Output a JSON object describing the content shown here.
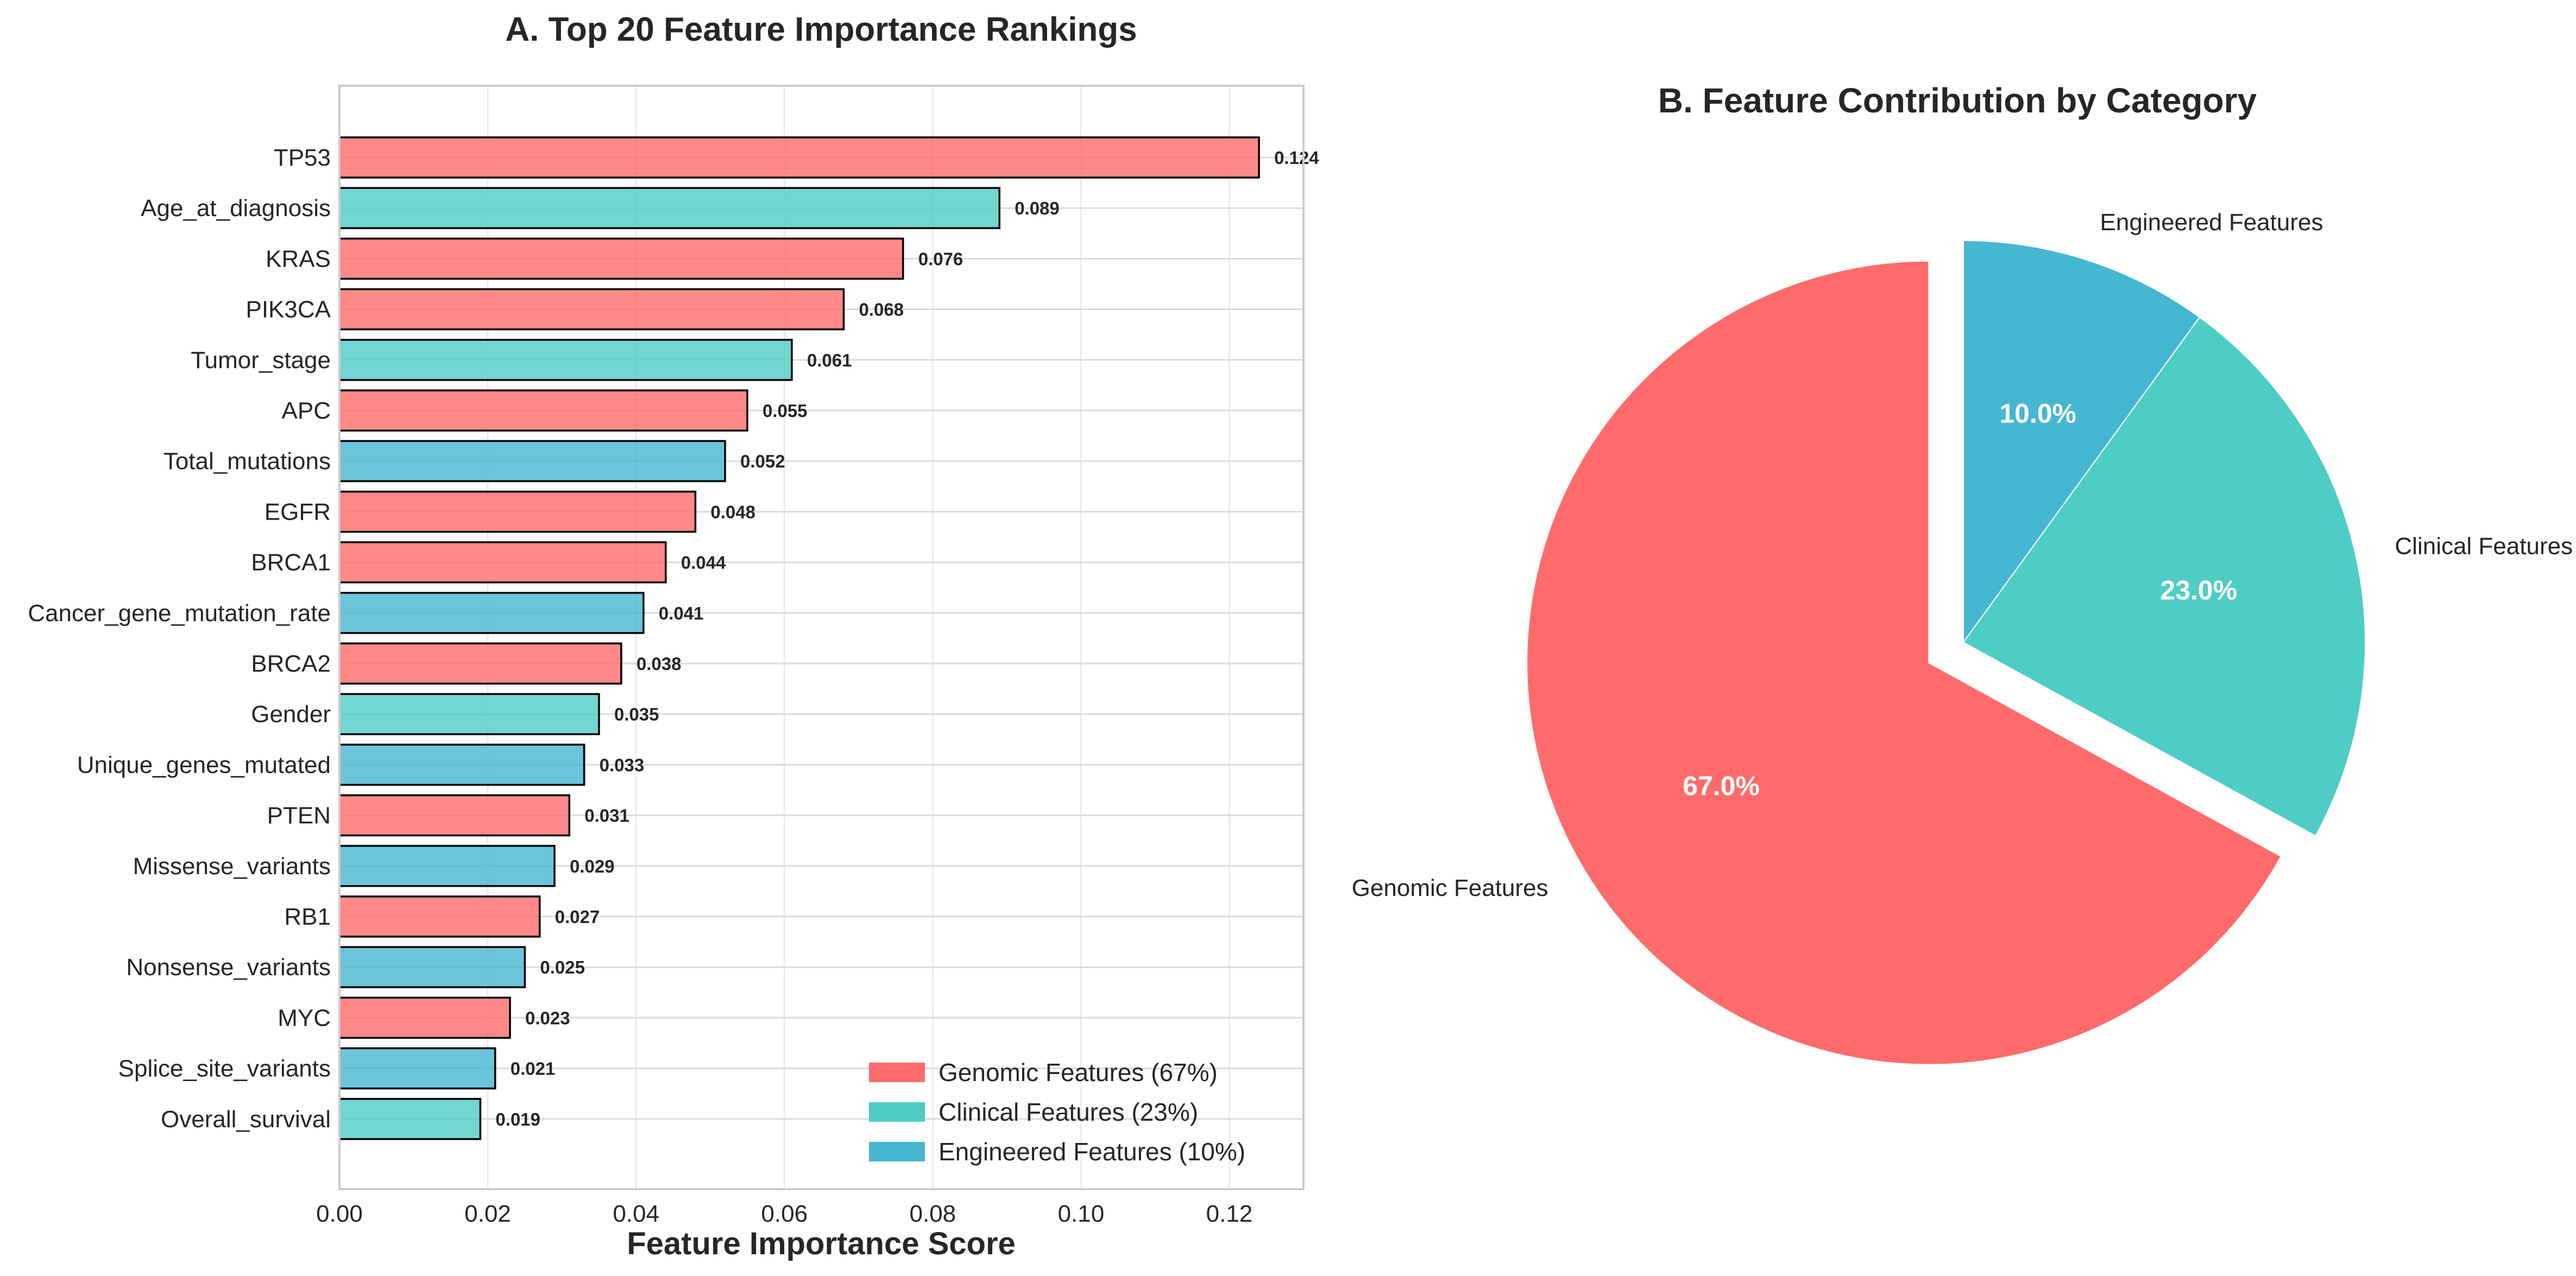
{
  "chart_data": [
    {
      "type": "bar",
      "orientation": "horizontal",
      "title": "A. Top 20 Feature Importance Rankings",
      "xlabel": "Feature Importance Score",
      "ylabel": "",
      "xlim": [
        0,
        0.13
      ],
      "xticks": [
        "0.00",
        "0.02",
        "0.04",
        "0.06",
        "0.08",
        "0.10",
        "0.12"
      ],
      "grid": true,
      "legend_position": "lower-right",
      "categories": [
        "TP53",
        "Age_at_diagnosis",
        "KRAS",
        "PIK3CA",
        "Tumor_stage",
        "APC",
        "Total_mutations",
        "EGFR",
        "BRCA1",
        "Cancer_gene_mutation_rate",
        "BRCA2",
        "Gender",
        "Unique_genes_mutated",
        "PTEN",
        "Missense_variants",
        "RB1",
        "Nonsense_variants",
        "MYC",
        "Splice_site_variants",
        "Overall_survival"
      ],
      "values": [
        0.124,
        0.089,
        0.076,
        0.068,
        0.061,
        0.055,
        0.052,
        0.048,
        0.044,
        0.041,
        0.038,
        0.035,
        0.033,
        0.031,
        0.029,
        0.027,
        0.025,
        0.023,
        0.021,
        0.019
      ],
      "value_labels": [
        "0.124",
        "0.089",
        "0.076",
        "0.068",
        "0.061",
        "0.055",
        "0.052",
        "0.048",
        "0.044",
        "0.041",
        "0.038",
        "0.035",
        "0.033",
        "0.031",
        "0.029",
        "0.027",
        "0.025",
        "0.023",
        "0.021",
        "0.019"
      ],
      "bar_groups": [
        "genomic",
        "clinical",
        "genomic",
        "genomic",
        "clinical",
        "genomic",
        "engineered",
        "genomic",
        "genomic",
        "engineered",
        "genomic",
        "clinical",
        "engineered",
        "genomic",
        "engineered",
        "genomic",
        "engineered",
        "genomic",
        "engineered",
        "clinical"
      ],
      "legend": [
        {
          "key": "genomic",
          "label": "Genomic Features (67%)",
          "color": "#ff6b6b"
        },
        {
          "key": "clinical",
          "label": "Clinical Features (23%)",
          "color": "#4ecdc4"
        },
        {
          "key": "engineered",
          "label": "Engineered Features (10%)",
          "color": "#45b7d1"
        }
      ]
    },
    {
      "type": "pie",
      "title": "B. Feature Contribution by Category",
      "start_angle_deg": 90,
      "direction": "clockwise",
      "slices": [
        {
          "label": "Engineered Features",
          "value": 10.0,
          "pct_label": "10.0%",
          "color": "#45b7d1",
          "explode": 0
        },
        {
          "label": "Clinical Features",
          "value": 23.0,
          "pct_label": "23.0%",
          "color": "#4ecdc4",
          "explode": 0
        },
        {
          "label": "Genomic Features",
          "value": 67.0,
          "pct_label": "67.0%",
          "color": "#ff6b6b",
          "explode": 0.1
        }
      ]
    }
  ]
}
